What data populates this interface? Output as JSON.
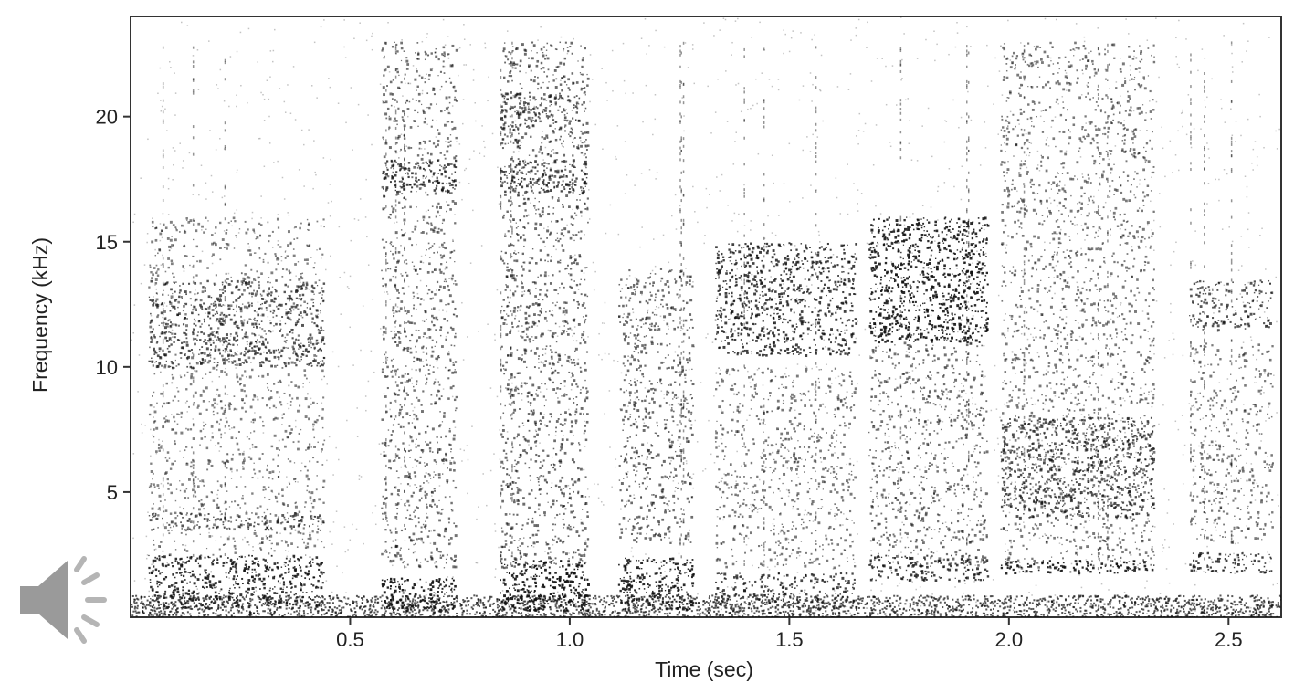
{
  "chart_data": {
    "type": "heatmap",
    "subtype": "spectrogram",
    "colormap": "grayscale (white = low, black = high intensity)",
    "xlabel": "Time (sec)",
    "ylabel": "Frequency (kHz)",
    "xlim": [
      0,
      2.62
    ],
    "ylim": [
      0,
      24
    ],
    "x_ticks": [
      0.5,
      1.0,
      1.5,
      2.0,
      2.5
    ],
    "x_tick_labels": [
      "0.5",
      "1.0",
      "1.5",
      "2.0",
      "2.5"
    ],
    "y_ticks": [
      5,
      10,
      15,
      20
    ],
    "y_tick_labels": [
      "5",
      "10",
      "15",
      "20"
    ],
    "grid": false,
    "legend": false,
    "segments": [
      {
        "t_start": 0.04,
        "t_end": 0.44,
        "description": "broadband noise with low band and 10-13 kHz rising trace",
        "bands": [
          {
            "f_low": 0.4,
            "f_high": 2.5,
            "intensity": 0.85
          },
          {
            "f_low": 3.5,
            "f_high": 4.2,
            "intensity": 0.6
          },
          {
            "f_low": 10,
            "f_high": 13.5,
            "intensity": 0.6
          },
          {
            "f_low": 2.5,
            "f_high": 16,
            "intensity": 0.3
          }
        ]
      },
      {
        "t_start": 0.57,
        "t_end": 0.74,
        "description": "harmonic stack",
        "bands": [
          {
            "f_low": 0.3,
            "f_high": 1.6,
            "intensity": 0.95
          },
          {
            "f_low": 17,
            "f_high": 18.3,
            "intensity": 0.75
          },
          {
            "f_low": 2,
            "f_high": 23,
            "intensity": 0.4
          }
        ]
      },
      {
        "t_start": 0.84,
        "t_end": 1.04,
        "description": "harmonic stack",
        "bands": [
          {
            "f_low": 0.3,
            "f_high": 2.3,
            "intensity": 0.95
          },
          {
            "f_low": 17,
            "f_high": 18.3,
            "intensity": 0.7
          },
          {
            "f_low": 19.5,
            "f_high": 21,
            "intensity": 0.55
          },
          {
            "f_low": 2,
            "f_high": 23,
            "intensity": 0.45
          }
        ]
      },
      {
        "t_start": 1.11,
        "t_end": 1.28,
        "description": "broadband burst",
        "bands": [
          {
            "f_low": 0.3,
            "f_high": 2.4,
            "intensity": 0.9
          },
          {
            "f_low": 3,
            "f_high": 14,
            "intensity": 0.45
          }
        ]
      },
      {
        "t_start": 1.33,
        "t_end": 1.65,
        "description": "frequency-modulated sweep around 12-15 kHz",
        "bands": [
          {
            "f_low": 0.4,
            "f_high": 1.8,
            "intensity": 0.7
          },
          {
            "f_low": 10.5,
            "f_high": 15,
            "intensity": 0.75
          },
          {
            "f_low": 2,
            "f_high": 10,
            "intensity": 0.35
          }
        ]
      },
      {
        "t_start": 1.68,
        "t_end": 1.95,
        "description": "strong sweep 11-16 kHz",
        "bands": [
          {
            "f_low": 1.5,
            "f_high": 2.5,
            "intensity": 0.75
          },
          {
            "f_low": 11,
            "f_high": 16,
            "intensity": 0.9
          },
          {
            "f_low": 2,
            "f_high": 11,
            "intensity": 0.4
          }
        ]
      },
      {
        "t_start": 1.98,
        "t_end": 2.33,
        "description": "broadband with 2 kHz tonal line and 4-8 kHz band",
        "bands": [
          {
            "f_low": 1.8,
            "f_high": 2.3,
            "intensity": 0.9
          },
          {
            "f_low": 4,
            "f_high": 8,
            "intensity": 0.65
          },
          {
            "f_low": 2,
            "f_high": 23,
            "intensity": 0.35
          }
        ]
      },
      {
        "t_start": 2.41,
        "t_end": 2.6,
        "description": "upper band near 12-13 kHz",
        "bands": [
          {
            "f_low": 1.8,
            "f_high": 2.6,
            "intensity": 0.75
          },
          {
            "f_low": 11.5,
            "f_high": 13.5,
            "intensity": 0.6
          },
          {
            "f_low": 3,
            "f_high": 11,
            "intensity": 0.35
          }
        ]
      }
    ]
  },
  "audio_control": {
    "icon": "speaker-icon"
  },
  "colors": {
    "axis": "#333333",
    "ink": "#111111",
    "speaker": "#9a9a9a"
  }
}
